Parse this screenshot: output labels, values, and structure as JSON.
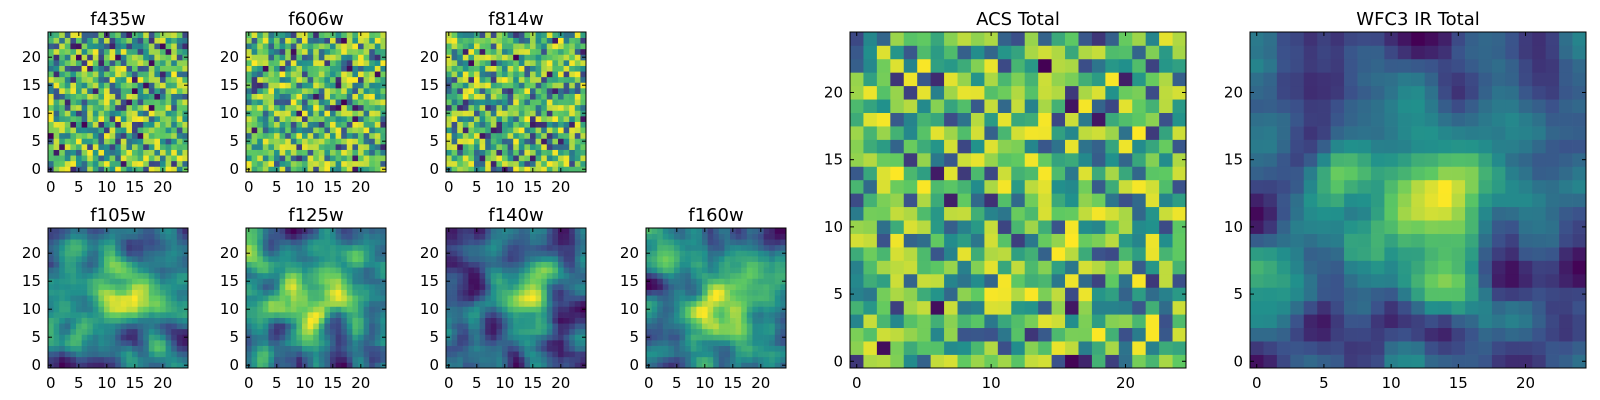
{
  "chart_data": [
    {
      "type": "heatmap",
      "title": "f435w",
      "xticks": [
        "0",
        "5",
        "10",
        "15",
        "20"
      ],
      "yticks": [
        "0",
        "5",
        "10",
        "15",
        "20"
      ],
      "range": [
        0,
        25
      ],
      "grid": [
        25,
        25
      ],
      "colormap": "viridis",
      "texture": "noise"
    },
    {
      "type": "heatmap",
      "title": "f606w",
      "xticks": [
        "0",
        "5",
        "10",
        "15",
        "20"
      ],
      "yticks": [
        "0",
        "5",
        "10",
        "15",
        "20"
      ],
      "range": [
        0,
        25
      ],
      "grid": [
        25,
        25
      ],
      "colormap": "viridis",
      "texture": "noise"
    },
    {
      "type": "heatmap",
      "title": "f814w",
      "xticks": [
        "0",
        "5",
        "10",
        "15",
        "20"
      ],
      "yticks": [
        "0",
        "5",
        "10",
        "15",
        "20"
      ],
      "range": [
        0,
        25
      ],
      "grid": [
        25,
        25
      ],
      "colormap": "viridis",
      "texture": "noise"
    },
    {
      "type": "heatmap",
      "title": "f105w",
      "xticks": [
        "0",
        "5",
        "10",
        "15",
        "20"
      ],
      "yticks": [
        "0",
        "5",
        "10",
        "15",
        "20"
      ],
      "range": [
        0,
        25
      ],
      "grid": [
        25,
        25
      ],
      "colormap": "viridis",
      "texture": "smooth"
    },
    {
      "type": "heatmap",
      "title": "f125w",
      "xticks": [
        "0",
        "5",
        "10",
        "15",
        "20"
      ],
      "yticks": [
        "0",
        "5",
        "10",
        "15",
        "20"
      ],
      "range": [
        0,
        25
      ],
      "grid": [
        25,
        25
      ],
      "colormap": "viridis",
      "texture": "smooth"
    },
    {
      "type": "heatmap",
      "title": "f140w",
      "xticks": [
        "0",
        "5",
        "10",
        "15",
        "20"
      ],
      "yticks": [
        "0",
        "5",
        "10",
        "15",
        "20"
      ],
      "range": [
        0,
        25
      ],
      "grid": [
        25,
        25
      ],
      "colormap": "viridis",
      "texture": "smooth"
    },
    {
      "type": "heatmap",
      "title": "f160w",
      "xticks": [
        "0",
        "5",
        "10",
        "15",
        "20"
      ],
      "yticks": [
        "0",
        "5",
        "10",
        "15",
        "20"
      ],
      "range": [
        0,
        25
      ],
      "grid": [
        25,
        25
      ],
      "colormap": "viridis",
      "texture": "smooth"
    },
    {
      "type": "heatmap",
      "title": "ACS Total",
      "xticks": [
        "0",
        "10",
        "20"
      ],
      "yticks": [
        "0",
        "5",
        "10",
        "15",
        "20"
      ],
      "range": [
        0,
        25
      ],
      "grid": [
        25,
        25
      ],
      "colormap": "viridis",
      "texture": "noise"
    },
    {
      "type": "heatmap",
      "title": "WFC3 IR Total",
      "xticks": [
        "0",
        "5",
        "10",
        "15",
        "20"
      ],
      "yticks": [
        "0",
        "5",
        "10",
        "15",
        "20"
      ],
      "range": [
        0,
        25
      ],
      "grid": [
        25,
        25
      ],
      "colormap": "viridis",
      "texture": "smooth"
    }
  ],
  "colors": {
    "viridis_stops": [
      "#440154",
      "#3b528b",
      "#21918c",
      "#5ec962",
      "#fde725"
    ]
  }
}
